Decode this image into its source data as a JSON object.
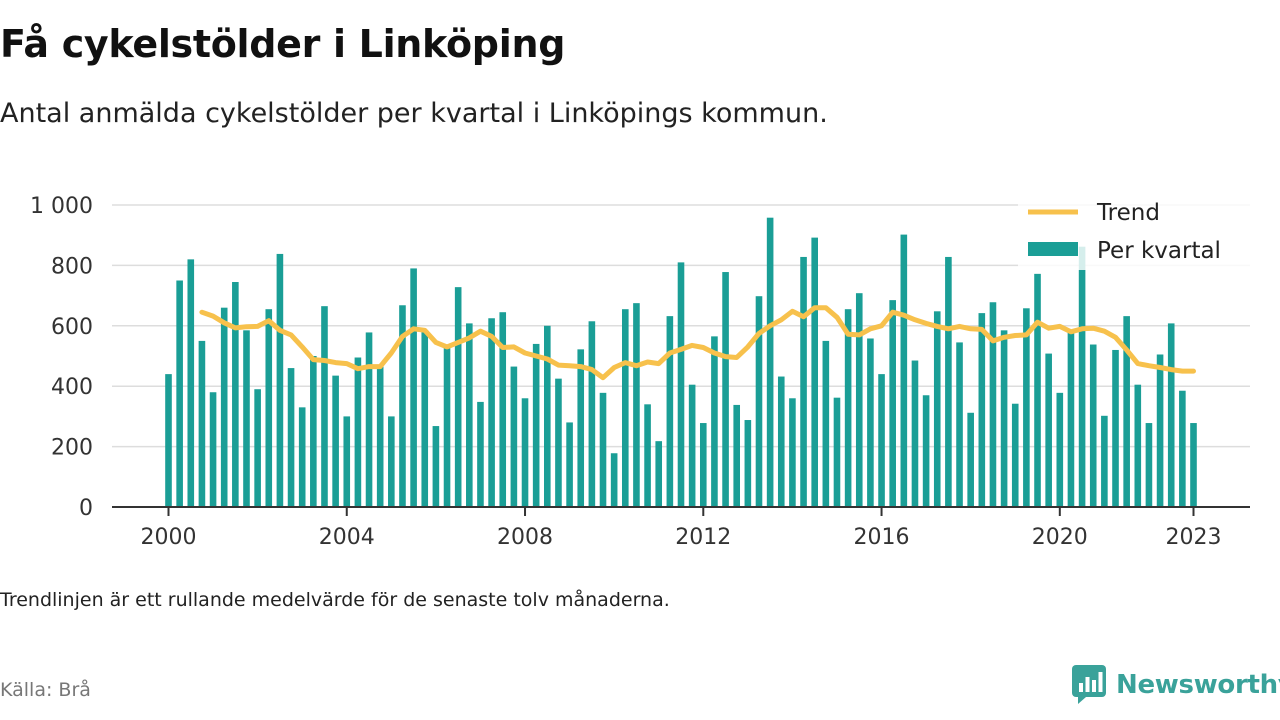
{
  "title": "Få cykelstölder i Linköping",
  "subtitle": "Antal anmälda cykelstölder per kvartal i Linköpings kommun.",
  "note": "Trendlinjen är ett rullande medelvärde för de senaste tolv månaderna.",
  "source": "Källa: Brå",
  "logo": {
    "text": "Newsworthy",
    "icon": "bar-chart-icon"
  },
  "colors": {
    "bars": "#1a9e96",
    "trend": "#f7c14c",
    "grid": "#dddddd",
    "axis": "#333333",
    "brand": "#3aa29a"
  },
  "chart_data": {
    "type": "bar",
    "x_unit": "quarter",
    "x_ticks": [
      "2000",
      "2004",
      "2008",
      "2012",
      "2016",
      "2020",
      "2023"
    ],
    "y_ticks": [
      "0",
      "200",
      "400",
      "600",
      "800",
      "1 000"
    ],
    "ylim": [
      0,
      1000
    ],
    "grid": true,
    "legend": {
      "placement": "top-right",
      "entries": [
        "Trend",
        "Per kvartal"
      ]
    },
    "series": [
      {
        "name": "Per kvartal",
        "type": "bar",
        "x": [
          "2000Q1",
          "2000Q2",
          "2000Q3",
          "2000Q4",
          "2001Q1",
          "2001Q2",
          "2001Q3",
          "2001Q4",
          "2002Q1",
          "2002Q2",
          "2002Q3",
          "2002Q4",
          "2003Q1",
          "2003Q2",
          "2003Q3",
          "2003Q4",
          "2004Q1",
          "2004Q2",
          "2004Q3",
          "2004Q4",
          "2005Q1",
          "2005Q2",
          "2005Q3",
          "2005Q4",
          "2006Q1",
          "2006Q2",
          "2006Q3",
          "2006Q4",
          "2007Q1",
          "2007Q2",
          "2007Q3",
          "2007Q4",
          "2008Q1",
          "2008Q2",
          "2008Q3",
          "2008Q4",
          "2009Q1",
          "2009Q2",
          "2009Q3",
          "2009Q4",
          "2010Q1",
          "2010Q2",
          "2010Q3",
          "2010Q4",
          "2011Q1",
          "2011Q2",
          "2011Q3",
          "2011Q4",
          "2012Q1",
          "2012Q2",
          "2012Q3",
          "2012Q4",
          "2013Q1",
          "2013Q2",
          "2013Q3",
          "2013Q4",
          "2014Q1",
          "2014Q2",
          "2014Q3",
          "2014Q4",
          "2015Q1",
          "2015Q2",
          "2015Q3",
          "2015Q4",
          "2016Q1",
          "2016Q2",
          "2016Q3",
          "2016Q4",
          "2017Q1",
          "2017Q2",
          "2017Q3",
          "2017Q4",
          "2018Q1",
          "2018Q2",
          "2018Q3",
          "2018Q4",
          "2019Q1",
          "2019Q2",
          "2019Q3",
          "2019Q4",
          "2020Q1",
          "2020Q2",
          "2020Q3",
          "2020Q4",
          "2021Q1",
          "2021Q2",
          "2021Q3",
          "2021Q4",
          "2022Q1",
          "2022Q2",
          "2022Q3",
          "2022Q4",
          "2023Q1"
        ],
        "values": [
          440,
          750,
          820,
          550,
          380,
          660,
          745,
          585,
          390,
          655,
          838,
          460,
          330,
          500,
          665,
          435,
          300,
          495,
          578,
          470,
          300,
          668,
          790,
          585,
          268,
          530,
          728,
          608,
          348,
          625,
          645,
          465,
          360,
          540,
          600,
          425,
          280,
          522,
          615,
          378,
          178,
          655,
          675,
          340,
          218,
          632,
          810,
          405,
          278,
          565,
          778,
          338,
          288,
          698,
          958,
          432,
          360,
          828,
          892,
          550,
          362,
          655,
          708,
          558,
          440,
          685,
          902,
          485,
          370,
          648,
          828,
          545,
          312,
          642,
          678,
          585,
          342,
          658,
          772,
          508,
          378,
          578,
          862,
          538,
          302,
          520,
          632,
          405,
          278,
          505,
          608,
          385,
          278
        ]
      },
      {
        "name": "Trend",
        "type": "line",
        "x": [
          "2000Q4",
          "2001Q1",
          "2001Q2",
          "2001Q3",
          "2001Q4",
          "2002Q1",
          "2002Q2",
          "2002Q3",
          "2002Q4",
          "2003Q1",
          "2003Q2",
          "2003Q3",
          "2003Q4",
          "2004Q1",
          "2004Q2",
          "2004Q3",
          "2004Q4",
          "2005Q1",
          "2005Q2",
          "2005Q3",
          "2005Q4",
          "2006Q1",
          "2006Q2",
          "2006Q3",
          "2006Q4",
          "2007Q1",
          "2007Q2",
          "2007Q3",
          "2007Q4",
          "2008Q1",
          "2008Q2",
          "2008Q3",
          "2008Q4",
          "2009Q1",
          "2009Q2",
          "2009Q3",
          "2009Q4",
          "2010Q1",
          "2010Q2",
          "2010Q3",
          "2010Q4",
          "2011Q1",
          "2011Q2",
          "2011Q3",
          "2011Q4",
          "2012Q1",
          "2012Q2",
          "2012Q3",
          "2012Q4",
          "2013Q1",
          "2013Q2",
          "2013Q3",
          "2013Q4",
          "2014Q1",
          "2014Q2",
          "2014Q3",
          "2014Q4",
          "2015Q1",
          "2015Q2",
          "2015Q3",
          "2015Q4",
          "2016Q1",
          "2016Q2",
          "2016Q3",
          "2016Q4",
          "2017Q1",
          "2017Q2",
          "2017Q3",
          "2017Q4",
          "2018Q1",
          "2018Q2",
          "2018Q3",
          "2018Q4",
          "2019Q1",
          "2019Q2",
          "2019Q3",
          "2019Q4",
          "2020Q1",
          "2020Q2",
          "2020Q3",
          "2020Q4",
          "2021Q1",
          "2021Q2",
          "2021Q3",
          "2021Q4",
          "2022Q1",
          "2022Q2",
          "2022Q3",
          "2022Q4",
          "2023Q1"
        ],
        "values": [
          645,
          632,
          610,
          593,
          597,
          598,
          617,
          585,
          570,
          530,
          488,
          485,
          478,
          475,
          458,
          465,
          465,
          510,
          565,
          590,
          585,
          545,
          530,
          545,
          560,
          582,
          565,
          528,
          530,
          510,
          500,
          490,
          470,
          468,
          465,
          455,
          428,
          462,
          478,
          468,
          480,
          475,
          510,
          522,
          535,
          528,
          510,
          498,
          495,
          530,
          575,
          600,
          620,
          648,
          630,
          660,
          660,
          628,
          572,
          570,
          590,
          600,
          645,
          635,
          620,
          608,
          598,
          590,
          598,
          590,
          588,
          550,
          562,
          568,
          570,
          612,
          592,
          598,
          580,
          590,
          592,
          582,
          562,
          520,
          475,
          468,
          462,
          455,
          450,
          450
        ]
      }
    ]
  }
}
